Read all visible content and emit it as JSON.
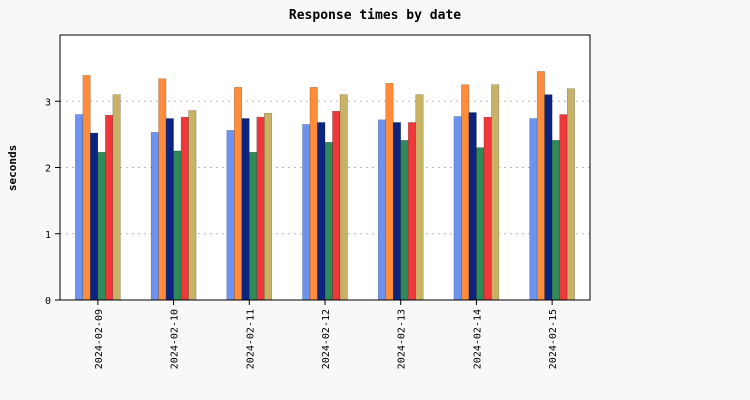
{
  "chart_data": {
    "type": "bar",
    "title": "Response times by date",
    "xlabel": "",
    "ylabel": "seconds",
    "ylim": [
      0,
      4
    ],
    "yticks": [
      0,
      1,
      2,
      3
    ],
    "grid": "horizontal dotted",
    "legend": "none",
    "categories": [
      "2024-02-09",
      "2024-02-10",
      "2024-02-11",
      "2024-02-12",
      "2024-02-13",
      "2024-02-14",
      "2024-02-15"
    ],
    "series": [
      {
        "color": "#6b93ef",
        "values": [
          2.8,
          2.53,
          2.56,
          2.65,
          2.72,
          2.77,
          2.74
        ]
      },
      {
        "color": "#ff8c3a",
        "values": [
          3.39,
          3.34,
          3.21,
          3.21,
          3.27,
          3.25,
          3.45
        ]
      },
      {
        "color": "#0b2480",
        "values": [
          2.52,
          2.74,
          2.74,
          2.68,
          2.68,
          2.83,
          3.1
        ]
      },
      {
        "color": "#2e8a57",
        "values": [
          2.23,
          2.25,
          2.23,
          2.38,
          2.41,
          2.3,
          2.41
        ]
      },
      {
        "color": "#f0373a",
        "values": [
          2.79,
          2.76,
          2.76,
          2.85,
          2.68,
          2.76,
          2.8
        ]
      },
      {
        "color": "#c8b266",
        "values": [
          3.1,
          2.86,
          2.82,
          3.1,
          3.1,
          3.25,
          3.19
        ]
      }
    ],
    "colors": {
      "background": "#f8f8f8",
      "plot_background": "#ffffff",
      "gridline": "#bbbbbb"
    }
  }
}
